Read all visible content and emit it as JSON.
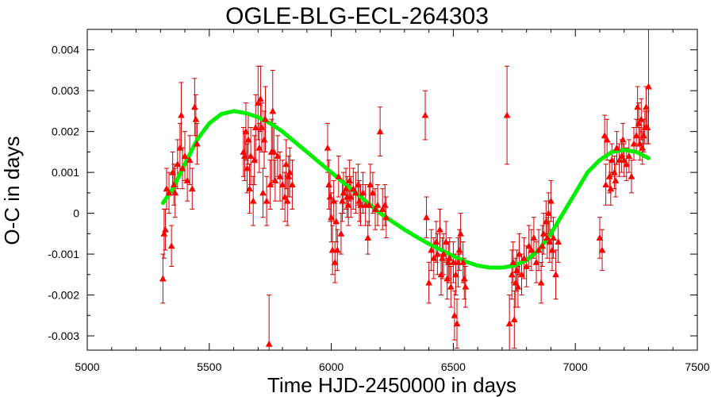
{
  "chart_data": {
    "type": "scatter",
    "title": "OGLE-BLG-ECL-264303",
    "xlabel": "Time HJD-2450000 in days",
    "ylabel": "O-C in days",
    "xlim": [
      5000,
      7500
    ],
    "ylim": [
      -0.00335,
      0.0045
    ],
    "x_ticks": [
      5000,
      5500,
      6000,
      6500,
      7000,
      7500
    ],
    "x_tick_labels": [
      "5000",
      "5500",
      "6000",
      "6500",
      "7000",
      "7500"
    ],
    "y_ticks": [
      -0.003,
      -0.002,
      -0.001,
      0,
      0.001,
      0.002,
      0.003,
      0.004
    ],
    "y_tick_labels": [
      "-0.003",
      "-0.002",
      "-0.001",
      "0",
      "0.001",
      "0.002",
      "0.003",
      "0.004"
    ],
    "grid": false,
    "colors": {
      "points": "#ff0000",
      "errorbars": "#cc0000",
      "fit": "#00ee00"
    },
    "series": [
      {
        "kind": "points",
        "marker": "triangle",
        "points": [
          [
            5310,
            -0.0016,
            0.0006
          ],
          [
            5315,
            -0.0005,
            0.0006
          ],
          [
            5320,
            -0.0004,
            0.0005
          ],
          [
            5325,
            0.0006,
            0.0005
          ],
          [
            5335,
            0.0005,
            0.0005
          ],
          [
            5345,
            -0.0008,
            0.0005
          ],
          [
            5350,
            0.001,
            0.0005
          ],
          [
            5355,
            0.0007,
            0.0005
          ],
          [
            5360,
            0.0005,
            0.0006
          ],
          [
            5370,
            0.0012,
            0.0006
          ],
          [
            5380,
            0.0016,
            0.0006
          ],
          [
            5385,
            0.0024,
            0.0008
          ],
          [
            5390,
            0.0011,
            0.0005
          ],
          [
            5400,
            0.0014,
            0.0006
          ],
          [
            5410,
            0.0008,
            0.0005
          ],
          [
            5420,
            0.0013,
            0.0006
          ],
          [
            5430,
            0.0006,
            0.0005
          ],
          [
            5440,
            0.0026,
            0.0007
          ],
          [
            5445,
            0.0023,
            0.0006
          ],
          [
            5450,
            0.0017,
            0.0005
          ],
          [
            5640,
            0.0015,
            0.0006
          ],
          [
            5645,
            0.0014,
            0.0006
          ],
          [
            5650,
            0.002,
            0.0007
          ],
          [
            5655,
            0.0011,
            0.0006
          ],
          [
            5660,
            0.0018,
            0.0006
          ],
          [
            5665,
            0.0006,
            0.0006
          ],
          [
            5670,
            0.0014,
            0.0007
          ],
          [
            5680,
            0.0003,
            0.0006
          ],
          [
            5685,
            0.0013,
            0.0006
          ],
          [
            5690,
            0.0021,
            0.0008
          ],
          [
            5700,
            0.0027,
            0.0009
          ],
          [
            5705,
            0.0016,
            0.0006
          ],
          [
            5710,
            0.0028,
            0.0008
          ],
          [
            5715,
            0.0021,
            0.0006
          ],
          [
            5720,
            0.0005,
            0.0006
          ],
          [
            5725,
            0.0018,
            0.0007
          ],
          [
            5730,
            0.0023,
            0.0008
          ],
          [
            5735,
            0.0003,
            0.0006
          ],
          [
            5745,
            -0.0032,
            0.0012
          ],
          [
            5750,
            0.0007,
            0.0006
          ],
          [
            5755,
            0.0015,
            0.0008
          ],
          [
            5760,
            0.0025,
            0.001
          ],
          [
            5765,
            0.0015,
            0.0007
          ],
          [
            5770,
            0.0008,
            0.0005
          ],
          [
            5780,
            0.0014,
            0.0005
          ],
          [
            5790,
            0.0009,
            0.0006
          ],
          [
            5800,
            0.0007,
            0.0006
          ],
          [
            5810,
            0.0004,
            0.0006
          ],
          [
            5815,
            0.0012,
            0.0006
          ],
          [
            5820,
            0.0003,
            0.0006
          ],
          [
            5825,
            0.0009,
            0.0005
          ],
          [
            5830,
            0.001,
            0.0006
          ],
          [
            5840,
            0.0007,
            0.0006
          ],
          [
            5985,
            0.0016,
            0.0006
          ],
          [
            5990,
            0.0007,
            0.0006
          ],
          [
            5995,
            0.0004,
            0.0006
          ],
          [
            6000,
            -0.0001,
            0.0006
          ],
          [
            6005,
            -0.0009,
            0.0006
          ],
          [
            6010,
            0.0003,
            0.0005
          ],
          [
            6015,
            -0.0012,
            0.0005
          ],
          [
            6020,
            -0.0002,
            0.0005
          ],
          [
            6025,
            -0.0009,
            0.0005
          ],
          [
            6030,
            0.0009,
            0.0005
          ],
          [
            6040,
            -0.0005,
            0.0005
          ],
          [
            6045,
            0.0003,
            0.0005
          ],
          [
            6050,
            0.0005,
            0.0005
          ],
          [
            6060,
            0.0006,
            0.0005
          ],
          [
            6065,
            0.0004,
            0.0005
          ],
          [
            6070,
            0.0002,
            0.0005
          ],
          [
            6075,
            0.0008,
            0.0005
          ],
          [
            6080,
            0.0004,
            0.0005
          ],
          [
            6090,
            0.0006,
            0.0005
          ],
          [
            6100,
            0.0005,
            0.0005
          ],
          [
            6110,
            0.0007,
            0.0005
          ],
          [
            6115,
            0.0003,
            0.0005
          ],
          [
            6120,
            0.0002,
            0.0005
          ],
          [
            6130,
            0.0005,
            0.0005
          ],
          [
            6140,
            0.0002,
            0.0005
          ],
          [
            6150,
            -0.0006,
            0.0004
          ],
          [
            6155,
            0.0002,
            0.0005
          ],
          [
            6160,
            0.0007,
            0.0005
          ],
          [
            6170,
            0.0005,
            0.0005
          ],
          [
            6180,
            0.0001,
            0.0005
          ],
          [
            6190,
            0.0002,
            0.0005
          ],
          [
            6200,
            0.002,
            0.0006
          ],
          [
            6210,
            0.0001,
            0.0005
          ],
          [
            6220,
            0.0002,
            0.0005
          ],
          [
            6225,
            -0.0001,
            0.0005
          ],
          [
            6385,
            0.0024,
            0.0006
          ],
          [
            6390,
            -0.0001,
            0.0005
          ],
          [
            6400,
            -0.0017,
            0.0005
          ],
          [
            6410,
            -0.0009,
            0.0005
          ],
          [
            6420,
            -0.0011,
            0.0005
          ],
          [
            6430,
            -0.0007,
            0.0005
          ],
          [
            6435,
            -0.001,
            0.0005
          ],
          [
            6445,
            -0.0004,
            0.0005
          ],
          [
            6450,
            -0.0015,
            0.0005
          ],
          [
            6455,
            -0.0011,
            0.0005
          ],
          [
            6460,
            -0.001,
            0.0005
          ],
          [
            6470,
            -0.0007,
            0.0005
          ],
          [
            6475,
            -0.0016,
            0.0005
          ],
          [
            6480,
            -0.0012,
            0.0005
          ],
          [
            6485,
            -0.0011,
            0.0005
          ],
          [
            6490,
            -0.0018,
            0.0005
          ],
          [
            6500,
            -0.0012,
            0.0005
          ],
          [
            6505,
            -0.0025,
            0.0006
          ],
          [
            6510,
            -0.0015,
            0.0005
          ],
          [
            6515,
            -0.0027,
            0.0006
          ],
          [
            6520,
            -0.0012,
            0.0006
          ],
          [
            6525,
            -0.0009,
            0.0005
          ],
          [
            6530,
            -0.0005,
            0.0005
          ],
          [
            6540,
            -0.0012,
            0.0005
          ],
          [
            6545,
            -0.0016,
            0.0005
          ],
          [
            6550,
            -0.0018,
            0.0005
          ],
          [
            6720,
            0.0024,
            0.0012
          ],
          [
            6730,
            -0.0027,
            0.0007
          ],
          [
            6740,
            -0.0015,
            0.0006
          ],
          [
            6745,
            -0.0012,
            0.0005
          ],
          [
            6750,
            -0.0026,
            0.0007
          ],
          [
            6755,
            -0.0017,
            0.0006
          ],
          [
            6760,
            -0.0014,
            0.0005
          ],
          [
            6765,
            -0.0018,
            0.0005
          ],
          [
            6770,
            -0.001,
            0.0005
          ],
          [
            6780,
            -0.0015,
            0.0005
          ],
          [
            6790,
            -0.0011,
            0.0005
          ],
          [
            6800,
            -0.0013,
            0.0005
          ],
          [
            6810,
            -0.0008,
            0.0005
          ],
          [
            6820,
            -0.0009,
            0.0005
          ],
          [
            6830,
            -0.0006,
            0.0005
          ],
          [
            6840,
            -0.0012,
            0.0005
          ],
          [
            6850,
            -0.0009,
            0.0005
          ],
          [
            6860,
            -0.0017,
            0.0005
          ],
          [
            6865,
            -0.0008,
            0.0005
          ],
          [
            6870,
            -0.0005,
            0.0005
          ],
          [
            6880,
            -0.0002,
            0.0005
          ],
          [
            6885,
            -0.0006,
            0.0005
          ],
          [
            6890,
            0,
            0.0005
          ],
          [
            6895,
            -0.0007,
            0.0005
          ],
          [
            6900,
            0.0003,
            0.0005
          ],
          [
            6905,
            -0.0009,
            0.0005
          ],
          [
            6910,
            -0.0006,
            0.0005
          ],
          [
            6920,
            -0.0015,
            0.0006
          ],
          [
            6930,
            -0.0007,
            0.0005
          ],
          [
            7100,
            -0.0006,
            0.0005
          ],
          [
            7110,
            -0.0009,
            0.0005
          ],
          [
            7120,
            0.0019,
            0.0005
          ],
          [
            7125,
            0.0007,
            0.0005
          ],
          [
            7130,
            0.0018,
            0.0005
          ],
          [
            7140,
            0.0009,
            0.0004
          ],
          [
            7145,
            0.0006,
            0.0004
          ],
          [
            7150,
            0.0013,
            0.0004
          ],
          [
            7160,
            0.001,
            0.0004
          ],
          [
            7165,
            0.0008,
            0.0004
          ],
          [
            7170,
            0.0016,
            0.0004
          ],
          [
            7180,
            0.0013,
            0.0004
          ],
          [
            7190,
            0.0014,
            0.0004
          ],
          [
            7195,
            0.0018,
            0.0004
          ],
          [
            7200,
            0.0013,
            0.0004
          ],
          [
            7210,
            0.0012,
            0.0004
          ],
          [
            7220,
            0.0014,
            0.0004
          ],
          [
            7230,
            0.0009,
            0.0004
          ],
          [
            7240,
            0.0017,
            0.0004
          ],
          [
            7250,
            0.0019,
            0.0004
          ],
          [
            7255,
            0.0026,
            0.0005
          ],
          [
            7260,
            0.0022,
            0.0005
          ],
          [
            7265,
            0.0017,
            0.0004
          ],
          [
            7270,
            0.0023,
            0.0005
          ],
          [
            7275,
            0.0016,
            0.0004
          ],
          [
            7280,
            0.0019,
            0.0004
          ],
          [
            7285,
            0.0021,
            0.0004
          ],
          [
            7290,
            0.0026,
            0.0005
          ],
          [
            7295,
            0.0021,
            0.0004
          ],
          [
            7300,
            0.0031,
            0.0014
          ]
        ]
      },
      {
        "kind": "fit",
        "points": [
          [
            5310,
            0.00025
          ],
          [
            5350,
            0.0006
          ],
          [
            5400,
            0.0012
          ],
          [
            5450,
            0.0018
          ],
          [
            5500,
            0.0022
          ],
          [
            5550,
            0.00243
          ],
          [
            5600,
            0.0025
          ],
          [
            5650,
            0.00245
          ],
          [
            5700,
            0.00235
          ],
          [
            5750,
            0.0022
          ],
          [
            5800,
            0.002
          ],
          [
            5850,
            0.00175
          ],
          [
            5900,
            0.0015
          ],
          [
            5950,
            0.00125
          ],
          [
            6000,
            0.001
          ],
          [
            6050,
            0.00075
          ],
          [
            6100,
            0.0005
          ],
          [
            6150,
            0.00025
          ],
          [
            6200,
            0.0
          ],
          [
            6250,
            -0.0002
          ],
          [
            6300,
            -0.0004
          ],
          [
            6350,
            -0.00058
          ],
          [
            6400,
            -0.00075
          ],
          [
            6450,
            -0.0009
          ],
          [
            6500,
            -0.00105
          ],
          [
            6550,
            -0.00118
          ],
          [
            6600,
            -0.00128
          ],
          [
            6650,
            -0.00133
          ],
          [
            6700,
            -0.00133
          ],
          [
            6750,
            -0.00128
          ],
          [
            6800,
            -0.00115
          ],
          [
            6850,
            -0.0009
          ],
          [
            6900,
            -0.0005
          ],
          [
            6950,
            0.0
          ],
          [
            7000,
            0.0005
          ],
          [
            7050,
            0.001
          ],
          [
            7100,
            0.0013
          ],
          [
            7150,
            0.0015
          ],
          [
            7200,
            0.00155
          ],
          [
            7250,
            0.0015
          ],
          [
            7300,
            0.00135
          ]
        ]
      }
    ]
  }
}
